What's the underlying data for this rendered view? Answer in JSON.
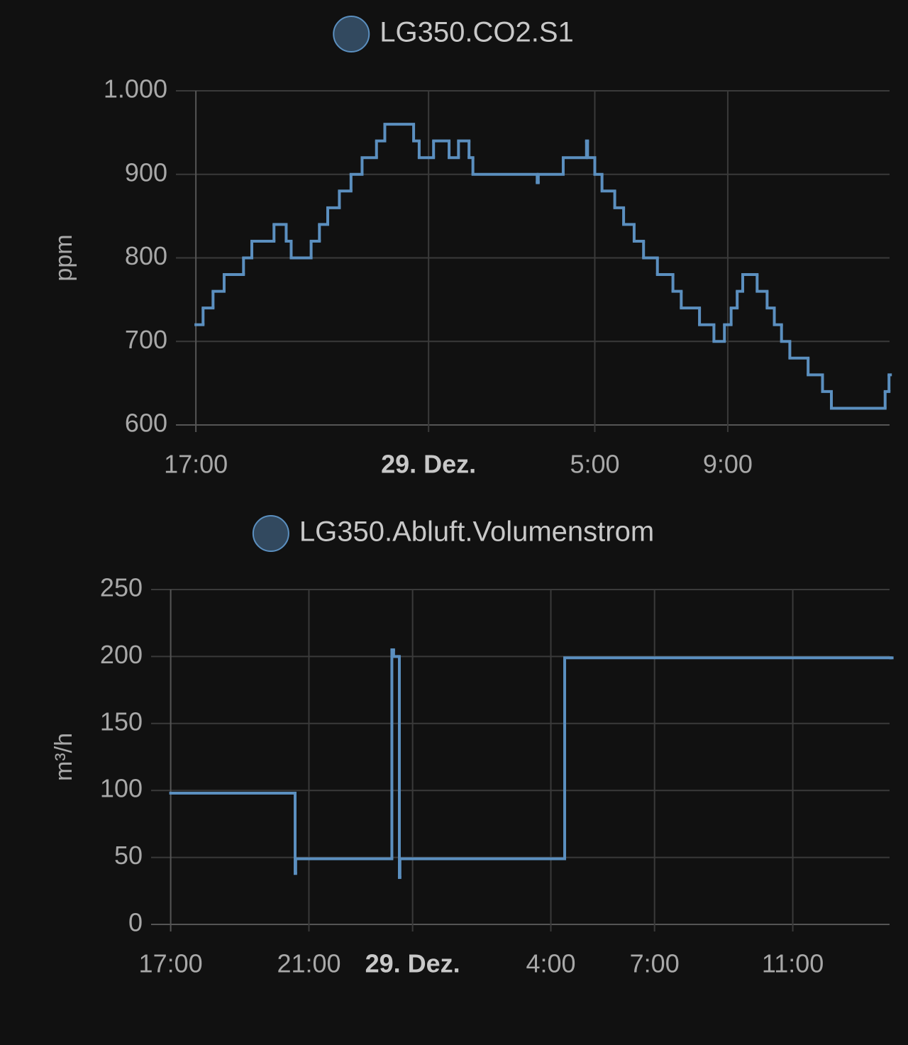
{
  "chart_data": [
    {
      "type": "line",
      "title": "LG350.CO2.S1",
      "y_label": "ppm",
      "step": true,
      "grid": true,
      "series": [
        {
          "name": "LG350.CO2.S1",
          "color": "#5b8fbf",
          "x": [
            "17:00",
            "17:13",
            "17:31",
            "17:51",
            "18:26",
            "18:41",
            "19:21",
            "19:43",
            "19:52",
            "20:28",
            "20:43",
            "20:58",
            "21:19",
            "21:40",
            "22:00",
            "22:26",
            "22:41",
            "23:33",
            "23:43",
            "00:09",
            "00:37",
            "00:54",
            "01:13",
            "01:20",
            "03:16",
            "03:18",
            "04:03",
            "04:45",
            "04:47",
            "05:00",
            "05:13",
            "05:36",
            "05:52",
            "06:11",
            "06:28",
            "06:53",
            "07:21",
            "07:36",
            "08:09",
            "08:35",
            "08:54",
            "09:06",
            "09:17",
            "09:27",
            "09:53",
            "10:11",
            "10:24",
            "10:37",
            "10:52",
            "11:25",
            "11:51",
            "12:07",
            "13:44",
            "13:51"
          ],
          "values": [
            720,
            740,
            760,
            780,
            800,
            820,
            840,
            820,
            800,
            820,
            840,
            860,
            880,
            900,
            920,
            940,
            960,
            940,
            920,
            940,
            920,
            940,
            920,
            900,
            890,
            900,
            920,
            940,
            920,
            900,
            880,
            860,
            840,
            820,
            800,
            780,
            760,
            740,
            720,
            700,
            720,
            740,
            760,
            780,
            760,
            740,
            720,
            700,
            680,
            660,
            640,
            620,
            640,
            660
          ]
        }
      ],
      "xlim": [
        "16:24",
        "13:52"
      ],
      "xticks": [
        "17:00",
        {
          "value": "00:00",
          "label": "29. Dez."
        },
        "5:00",
        "9:00"
      ],
      "ylim": [
        600,
        1000
      ],
      "yticks": [
        600,
        700,
        800,
        900,
        {
          "value": 1000,
          "label": "1.000"
        }
      ]
    },
    {
      "type": "line",
      "title": "LG350.Abluft.Volumenstrom",
      "y_label": "m³/h",
      "step": true,
      "grid": true,
      "series": [
        {
          "name": "LG350.Abluft.Volumenstrom",
          "color": "#5b8fbf",
          "x": [
            "17:00",
            "20:35",
            "20:36",
            "20:37",
            "23:23",
            "23:24",
            "23:27",
            "23:35",
            "23:37",
            "23:38",
            "04:22",
            "04:24",
            "13:50"
          ],
          "values": [
            98,
            98,
            38,
            49,
            49,
            205,
            200,
            200,
            35,
            49,
            49,
            199,
            199
          ]
        }
      ],
      "xlim": [
        "16:26",
        "13:48"
      ],
      "xticks": [
        "17:00",
        "21:00",
        {
          "value": "00:00",
          "label": "29. Dez."
        },
        "4:00",
        "7:00",
        "11:00"
      ],
      "ylim": [
        0,
        250
      ],
      "yticks": [
        0,
        50,
        100,
        150,
        200,
        250
      ]
    }
  ]
}
